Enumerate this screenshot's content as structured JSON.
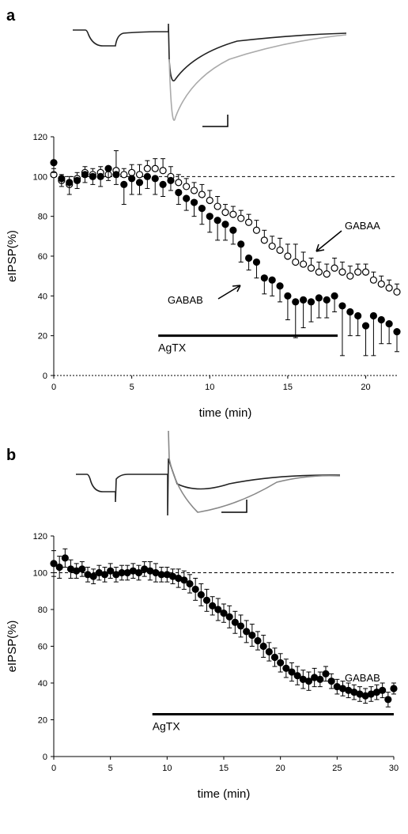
{
  "chart_data": [
    {
      "type": "scatter",
      "panel_label": "a",
      "xlabel": "time (min)",
      "ylabel": "eIPSP(%)",
      "xlim": [
        0,
        22
      ],
      "ylim": [
        0,
        120
      ],
      "xticks": [
        0,
        5,
        10,
        15,
        20
      ],
      "yticks": [
        0,
        20,
        40,
        60,
        80,
        100,
        120
      ],
      "reference_line": 100,
      "x": [
        0,
        0.5,
        1,
        1.5,
        2,
        2.5,
        3,
        3.5,
        4,
        4.5,
        5,
        5.5,
        6,
        6.5,
        7,
        7.5,
        8,
        8.5,
        9,
        9.5,
        10,
        10.5,
        11,
        11.5,
        12,
        12.5,
        13,
        13.5,
        14,
        14.5,
        15,
        15.5,
        16,
        16.5,
        17,
        17.5,
        18,
        18.5,
        19,
        19.5,
        20,
        20.5,
        21,
        21.5,
        22
      ],
      "series": [
        {
          "name": "GABAA",
          "marker": "open",
          "color": "#000000",
          "error_side": "up",
          "values": [
            101,
            98,
            96,
            99,
            102,
            101,
            102,
            101,
            103,
            101,
            102,
            101,
            104,
            104,
            103,
            100,
            97,
            95,
            93,
            91,
            88,
            85,
            82,
            81,
            79,
            77,
            73,
            68,
            65,
            63,
            60,
            57,
            56,
            54,
            52,
            51,
            54,
            52,
            50,
            52,
            52,
            48,
            46,
            44,
            42
          ],
          "errors": [
            3,
            3,
            4,
            3,
            3,
            3,
            3,
            4,
            10,
            3,
            4,
            5,
            4,
            5,
            6,
            5,
            4,
            4,
            4,
            5,
            5,
            5,
            4,
            4,
            4,
            4,
            5,
            5,
            5,
            6,
            6,
            9,
            6,
            5,
            5,
            5,
            5,
            5,
            5,
            4,
            4,
            4,
            4,
            4,
            4
          ]
        },
        {
          "name": "GABAB",
          "marker": "filled",
          "color": "#000000",
          "error_side": "down",
          "values": [
            107,
            99,
            97,
            98,
            101,
            100,
            100,
            104,
            101,
            96,
            99,
            97,
            100,
            99,
            96,
            98,
            92,
            89,
            87,
            84,
            80,
            78,
            76,
            73,
            66,
            59,
            57,
            49,
            48,
            45,
            40,
            37,
            38,
            37,
            39,
            38,
            40,
            35,
            32,
            30,
            25,
            30,
            28,
            26,
            22
          ],
          "errors": [
            5,
            4,
            6,
            4,
            4,
            4,
            5,
            6,
            5,
            10,
            8,
            6,
            6,
            8,
            6,
            5,
            6,
            6,
            7,
            8,
            8,
            10,
            8,
            7,
            9,
            6,
            8,
            8,
            8,
            8,
            12,
            18,
            14,
            10,
            10,
            9,
            8,
            25,
            12,
            10,
            15,
            20,
            12,
            10,
            10
          ]
        }
      ],
      "treatment": {
        "label": "AgTX",
        "start": 6.7,
        "end": 18.2,
        "level": 20
      },
      "annotations": [
        "GABAA",
        "GABAB"
      ]
    },
    {
      "type": "scatter",
      "panel_label": "b",
      "xlabel": "time (min)",
      "ylabel": "eIPSP(%)",
      "xlim": [
        0,
        30
      ],
      "ylim": [
        0,
        120
      ],
      "xticks": [
        0,
        5,
        10,
        15,
        20,
        25,
        30
      ],
      "yticks": [
        0,
        20,
        40,
        60,
        80,
        100,
        120
      ],
      "reference_line": 100,
      "x": [
        0,
        0.5,
        1,
        1.5,
        2,
        2.5,
        3,
        3.5,
        4,
        4.5,
        5,
        5.5,
        6,
        6.5,
        7,
        7.5,
        8,
        8.5,
        9,
        9.5,
        10,
        10.5,
        11,
        11.5,
        12,
        12.5,
        13,
        13.5,
        14,
        14.5,
        15,
        15.5,
        16,
        16.5,
        17,
        17.5,
        18,
        18.5,
        19,
        19.5,
        20,
        20.5,
        21,
        21.5,
        22,
        22.5,
        23,
        23.5,
        24,
        24.5,
        25,
        25.5,
        26,
        26.5,
        27,
        27.5,
        28,
        28.5,
        29,
        29.5,
        30
      ],
      "series": [
        {
          "name": "GABAB",
          "marker": "filled",
          "color": "#000000",
          "error_side": "both",
          "values": [
            105,
            103,
            108,
            102,
            101,
            102,
            99,
            98,
            100,
            99,
            101,
            99,
            100,
            100,
            101,
            100,
            102,
            101,
            100,
            99,
            99,
            98,
            97,
            96,
            94,
            91,
            88,
            85,
            82,
            80,
            78,
            76,
            73,
            71,
            68,
            66,
            63,
            60,
            57,
            54,
            51,
            48,
            46,
            44,
            42,
            41,
            43,
            42,
            45,
            41,
            38,
            37,
            36,
            35,
            34,
            33,
            34,
            35,
            36,
            31,
            37
          ],
          "errors": [
            7,
            6,
            5,
            5,
            4,
            4,
            4,
            4,
            4,
            4,
            4,
            4,
            4,
            4,
            4,
            4,
            4,
            5,
            5,
            4,
            4,
            4,
            5,
            5,
            5,
            6,
            6,
            6,
            5,
            6,
            5,
            6,
            6,
            6,
            6,
            6,
            5,
            6,
            5,
            5,
            5,
            5,
            5,
            5,
            5,
            5,
            5,
            4,
            4,
            4,
            4,
            4,
            4,
            4,
            4,
            4,
            4,
            4,
            4,
            4,
            3
          ]
        }
      ],
      "treatment": {
        "label": "AgTX",
        "start": 8.7,
        "end": 30,
        "level": 23
      },
      "annotations": [
        "GABAB"
      ]
    }
  ]
}
